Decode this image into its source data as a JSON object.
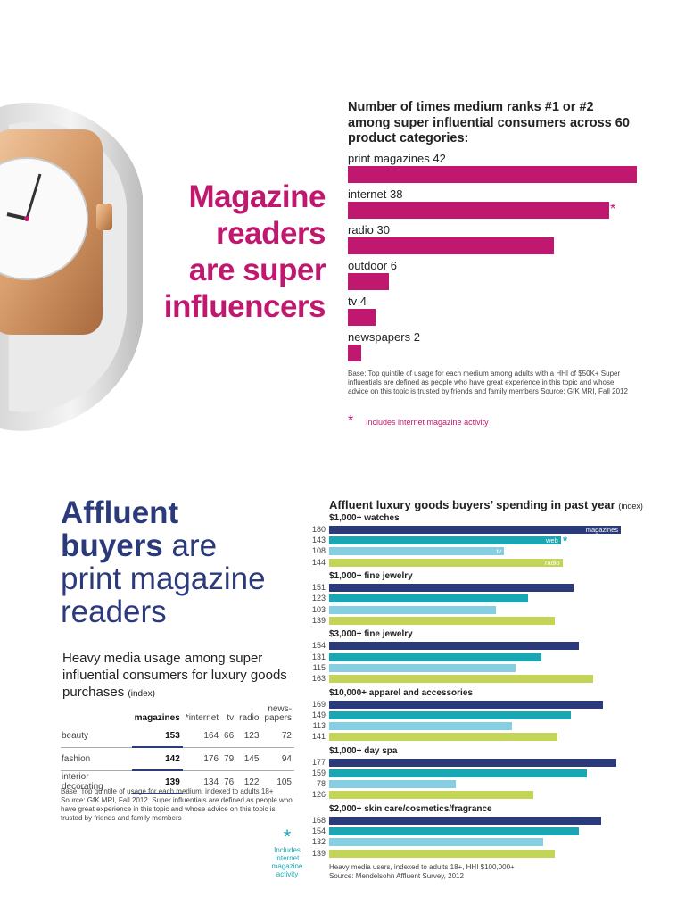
{
  "top": {
    "headline": [
      "Magazine",
      "readers",
      "are super",
      "influencers"
    ],
    "chart_title": "Number of times medium ranks #1 or #2 among super influential consumers across 60 product categories:",
    "note": "Base: Top quintile of usage for each medium among adults with a HHI of $50K+ Super influentials are defined as people who have great experience in this topic and whose advice on this topic is trusted by friends and family members Source: GfK MRI, Fall 2012",
    "footnote": "Includes internet magazine activity",
    "star": "*"
  },
  "bottom_left": {
    "headline_bold_1": "Affluent",
    "headline_bold_2": "buyers",
    "headline_rest_2": " are",
    "headline_line3": "print magazine",
    "headline_line4": "readers",
    "table_title": "Heavy media usage among super influential consumers for luxury goods purchases",
    "table_title_suffix": "(index)",
    "columns": [
      "",
      "magazines",
      "*internet",
      "tv",
      "radio",
      "news-papers"
    ],
    "rows": [
      {
        "category": "beauty",
        "values": [
          "153",
          "164",
          "66",
          "123",
          "72"
        ]
      },
      {
        "category": "fashion",
        "values": [
          "142",
          "176",
          "79",
          "145",
          "94"
        ]
      },
      {
        "category": "interior decorating",
        "values": [
          "139",
          "134",
          "76",
          "122",
          "105"
        ]
      }
    ],
    "note": "Base: Top quintile of usage for each medium, indexed to adults 18+ Source: GfK MRI, Fall 2012. Super influentials are defined as people who have great experience in this topic and whose advice on this topic is trusted by friends and family members",
    "star_note": "Includes internet magazine activity",
    "star": "*"
  },
  "bottom_right": {
    "title": "Affluent luxury goods buyers’ spending in past year",
    "title_suffix": "(index)",
    "note_1": "Heavy media users, indexed to adults 18+, HHI $100,000+",
    "note_2": "Source: Mendelsohn Affluent Survey, 2012",
    "star": "*"
  },
  "colors": {
    "pink": "#c0176f",
    "navy": "#2b3a7a",
    "teal": "#1aa7b4",
    "lightblue": "#86cfe3",
    "lime": "#c3d457"
  },
  "chart_data": [
    {
      "type": "bar",
      "orientation": "horizontal",
      "title": "Number of times medium ranks #1 or #2 among super influential consumers across 60 product categories:",
      "categories": [
        "print magazines",
        "internet",
        "radio",
        "outdoor",
        "tv",
        "newspapers"
      ],
      "values": [
        42,
        38,
        30,
        6,
        4,
        2
      ],
      "labels": [
        "print magazines 42",
        "internet 38",
        "radio 30",
        "outdoor 6",
        "tv 4",
        "newspapers 2"
      ],
      "xlim": [
        0,
        42
      ]
    },
    {
      "type": "bar",
      "orientation": "horizontal",
      "title": "Affluent luxury goods buyers’ spending in past year (index)",
      "series_names": [
        "magazines",
        "web",
        "tv",
        "radio"
      ],
      "groups": [
        {
          "label": "$1,000+ watches",
          "values": [
            180,
            143,
            108,
            144
          ]
        },
        {
          "label": "$1,000+ fine jewelry",
          "values": [
            151,
            123,
            103,
            139
          ]
        },
        {
          "label": "$3,000+ fine jewelry",
          "values": [
            154,
            131,
            115,
            163
          ]
        },
        {
          "label": "$10,000+ apparel and accessories",
          "values": [
            169,
            149,
            113,
            141
          ]
        },
        {
          "label": "$1,000+ day spa",
          "values": [
            177,
            159,
            78,
            126
          ]
        },
        {
          "label": "$2,000+ skin care/cosmetics/fragrance",
          "values": [
            168,
            154,
            132,
            139
          ]
        }
      ],
      "xlim": [
        0,
        180
      ]
    }
  ]
}
